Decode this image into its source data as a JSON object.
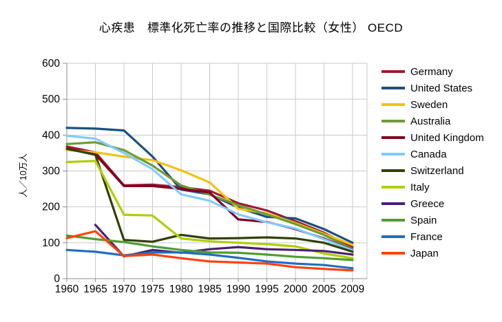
{
  "title": "心疾患　標準化死亡率の推移と国際比較（女性） OECD",
  "chart_data": {
    "type": "line",
    "title": "心疾患　標準化死亡率の推移と国際比較（女性） OECD",
    "xlabel": "",
    "ylabel": "人／10万人",
    "ylim": [
      0,
      600
    ],
    "yticks": [
      0,
      100,
      200,
      300,
      400,
      500,
      600
    ],
    "grid": true,
    "legend_position": "right",
    "categories": [
      "1960",
      "1965",
      "1970",
      "1975",
      "1980",
      "1985",
      "1990",
      "1995",
      "2000",
      "2005",
      "2009"
    ],
    "series": [
      {
        "name": "Germany",
        "color": "#9E1B32",
        "values": [
          368,
          352,
          260,
          262,
          255,
          245,
          210,
          190,
          160,
          128,
          88
        ]
      },
      {
        "name": "United States",
        "color": "#1B4F7E",
        "values": [
          420,
          418,
          413,
          340,
          248,
          235,
          198,
          172,
          168,
          138,
          100
        ]
      },
      {
        "name": "Sweden",
        "color": "#F2C113",
        "values": [
          358,
          352,
          340,
          330,
          302,
          268,
          195,
          182,
          155,
          125,
          94
        ]
      },
      {
        "name": "Australia",
        "color": "#6E9B34",
        "values": [
          375,
          380,
          358,
          315,
          260,
          234,
          205,
          179,
          152,
          122,
          82
        ]
      },
      {
        "name": "United Kingdom",
        "color": "#7E0021",
        "values": [
          362,
          346,
          258,
          258,
          250,
          240,
          165,
          158,
          138,
          112,
          80
        ]
      },
      {
        "name": "Canada",
        "color": "#83CAFF",
        "values": [
          398,
          390,
          350,
          305,
          235,
          217,
          179,
          157,
          140,
          110,
          79
        ]
      },
      {
        "name": "Switzerland",
        "color": "#314004",
        "values": [
          362,
          345,
          108,
          103,
          122,
          112,
          113,
          115,
          112,
          100,
          75
        ]
      },
      {
        "name": "Italy",
        "color": "#AECF00",
        "values": [
          325,
          328,
          178,
          176,
          112,
          104,
          100,
          96,
          90,
          70,
          57
        ]
      },
      {
        "name": "Greece",
        "color": "#4B1F6F",
        "values": [
          null,
          150,
          62,
          80,
          72,
          82,
          88,
          82,
          80,
          77,
          67
        ]
      },
      {
        "name": "Spain",
        "color": "#4F9D31",
        "values": [
          120,
          110,
          102,
          90,
          80,
          73,
          72,
          67,
          61,
          57,
          52
        ]
      },
      {
        "name": "France",
        "color": "#1F6FC0",
        "values": [
          80,
          75,
          65,
          73,
          73,
          67,
          58,
          48,
          42,
          38,
          29
        ]
      },
      {
        "name": "Japan",
        "color": "#FF420E",
        "values": [
          113,
          132,
          63,
          67,
          57,
          48,
          45,
          42,
          32,
          27,
          23
        ]
      }
    ]
  }
}
